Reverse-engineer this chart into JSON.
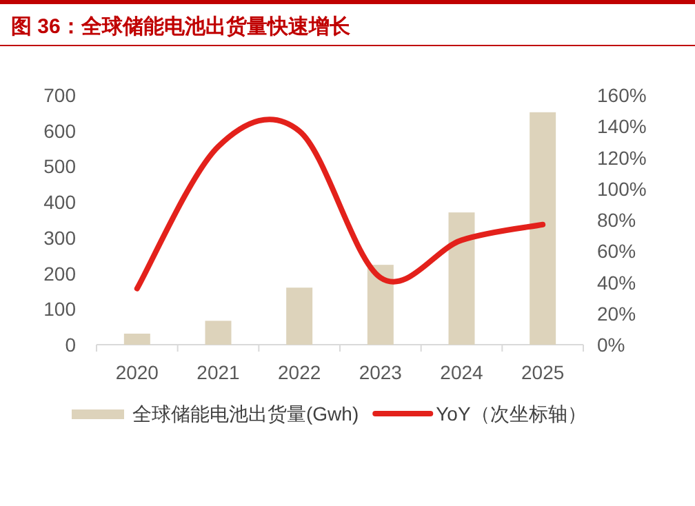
{
  "chart_data": {
    "type": "bar",
    "title": "图 36：全球储能电池出货量快速增长",
    "categories": [
      "2020",
      "2021",
      "2022",
      "2023",
      "2024",
      "2025"
    ],
    "series": [
      {
        "name": "全球储能电池出货量(Gwh)",
        "color": "#ddd3bb",
        "values": [
          31,
          67,
          160,
          224,
          371,
          652
        ]
      },
      {
        "name": "YoY（次坐标轴）",
        "type": "line",
        "axis": "y2",
        "color": "#e3211b",
        "values": [
          36,
          127,
          137,
          43,
          67,
          77
        ]
      }
    ],
    "ylim": [
      0,
      700
    ],
    "yticks": [
      0,
      100,
      200,
      300,
      400,
      500,
      600,
      700
    ],
    "y2lim": [
      0,
      160
    ],
    "y2ticks": [
      {
        "value": 0,
        "label": "0%"
      },
      {
        "value": 20,
        "label": "20%"
      },
      {
        "value": 40,
        "label": "40%"
      },
      {
        "value": 60,
        "label": "60%"
      },
      {
        "value": 80,
        "label": "80%"
      },
      {
        "value": 100,
        "label": "100%"
      },
      {
        "value": 120,
        "label": "120%"
      },
      {
        "value": 140,
        "label": "140%"
      },
      {
        "value": 160,
        "label": "160%"
      }
    ],
    "grid": false,
    "legend": "bottom"
  }
}
